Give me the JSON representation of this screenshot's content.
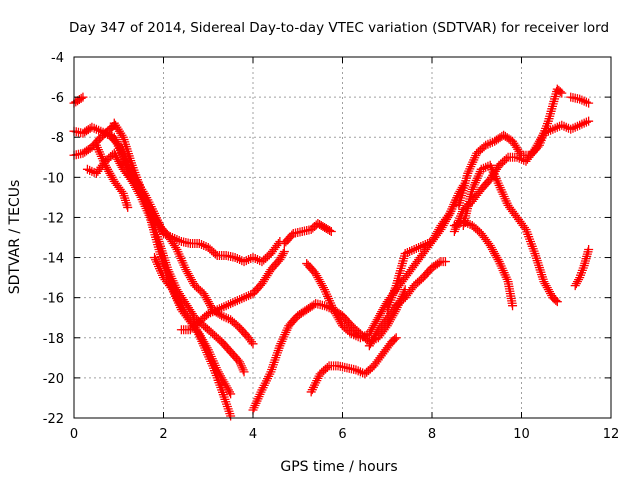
{
  "chart_data": {
    "type": "scatter",
    "title": "Day 347 of 2014, Sidereal Day-to-day VTEC variation (SDTVAR) for receiver lord",
    "xlabel": "GPS time / hours",
    "ylabel": "SDTVAR / TECUs",
    "xlim": [
      0,
      12
    ],
    "ylim": [
      -22,
      -4
    ],
    "xticks": [
      0,
      2,
      4,
      6,
      8,
      10,
      12
    ],
    "yticks": [
      -22,
      -20,
      -18,
      -16,
      -14,
      -12,
      -10,
      -8,
      -6,
      -4
    ],
    "grid": true,
    "marker": "plus",
    "marker_color": "#ff0000",
    "series": [
      {
        "values": [
          [
            0.0,
            -6.3
          ],
          [
            0.2,
            -6.0
          ]
        ]
      },
      {
        "values": [
          [
            0.0,
            -7.7
          ],
          [
            0.2,
            -7.8
          ],
          [
            0.4,
            -7.5
          ],
          [
            0.6,
            -7.7
          ],
          [
            0.8,
            -7.9
          ],
          [
            1.0,
            -8.4
          ],
          [
            1.2,
            -9.4
          ],
          [
            1.4,
            -10.2
          ],
          [
            1.6,
            -10.9
          ],
          [
            1.8,
            -11.8
          ],
          [
            2.0,
            -12.8
          ],
          [
            2.2,
            -13.0
          ],
          [
            2.4,
            -13.2
          ],
          [
            2.6,
            -13.3
          ],
          [
            2.8,
            -13.3
          ],
          [
            3.0,
            -13.5
          ],
          [
            3.2,
            -13.9
          ],
          [
            3.4,
            -13.9
          ],
          [
            3.6,
            -14.0
          ],
          [
            3.8,
            -14.2
          ],
          [
            4.0,
            -14.0
          ],
          [
            4.2,
            -14.2
          ],
          [
            4.4,
            -13.8
          ],
          [
            4.6,
            -13.2
          ]
        ]
      },
      {
        "values": [
          [
            0.0,
            -8.9
          ],
          [
            0.2,
            -8.8
          ],
          [
            0.4,
            -8.5
          ],
          [
            0.6,
            -8.0
          ],
          [
            0.8,
            -7.6
          ],
          [
            0.9,
            -7.4
          ]
        ]
      },
      {
        "values": [
          [
            0.9,
            -7.3
          ],
          [
            1.1,
            -8.0
          ],
          [
            1.3,
            -9.4
          ],
          [
            1.5,
            -10.6
          ],
          [
            1.7,
            -11.8
          ],
          [
            1.9,
            -13.2
          ],
          [
            2.1,
            -14.6
          ],
          [
            2.3,
            -15.6
          ],
          [
            2.5,
            -16.3
          ],
          [
            2.7,
            -17.0
          ],
          [
            2.9,
            -17.4
          ],
          [
            3.1,
            -17.8
          ],
          [
            3.3,
            -18.2
          ],
          [
            3.5,
            -18.7
          ],
          [
            3.7,
            -19.2
          ],
          [
            3.8,
            -19.7
          ]
        ]
      },
      {
        "values": [
          [
            0.7,
            -7.8
          ],
          [
            0.9,
            -8.0
          ],
          [
            1.1,
            -9.0
          ],
          [
            1.3,
            -10.2
          ],
          [
            1.5,
            -11.0
          ],
          [
            1.7,
            -12.0
          ],
          [
            1.9,
            -13.6
          ],
          [
            2.1,
            -15.0
          ],
          [
            2.3,
            -16.0
          ],
          [
            2.5,
            -16.8
          ],
          [
            2.7,
            -17.4
          ],
          [
            2.9,
            -18.4
          ],
          [
            3.1,
            -19.4
          ],
          [
            3.3,
            -20.6
          ],
          [
            3.5,
            -21.9
          ]
        ]
      },
      {
        "values": [
          [
            0.3,
            -9.6
          ],
          [
            0.5,
            -9.8
          ],
          [
            0.7,
            -9.2
          ],
          [
            0.9,
            -8.8
          ],
          [
            1.1,
            -9.6
          ],
          [
            1.3,
            -10.2
          ],
          [
            1.5,
            -10.8
          ],
          [
            1.7,
            -11.6
          ],
          [
            1.9,
            -12.4
          ],
          [
            2.1,
            -12.9
          ],
          [
            2.3,
            -13.6
          ],
          [
            2.5,
            -14.6
          ],
          [
            2.7,
            -15.4
          ],
          [
            2.9,
            -15.8
          ],
          [
            3.1,
            -16.6
          ],
          [
            3.3,
            -16.9
          ],
          [
            3.5,
            -17.1
          ],
          [
            3.7,
            -17.5
          ],
          [
            3.9,
            -18.0
          ],
          [
            4.0,
            -18.3
          ]
        ]
      },
      {
        "values": [
          [
            0.5,
            -8.4
          ],
          [
            0.7,
            -9.4
          ],
          [
            0.9,
            -10.2
          ],
          [
            1.1,
            -10.8
          ],
          [
            1.2,
            -11.5
          ]
        ]
      },
      {
        "values": [
          [
            1.8,
            -14.0
          ],
          [
            2.0,
            -15.0
          ],
          [
            2.2,
            -15.6
          ],
          [
            2.4,
            -16.6
          ],
          [
            2.6,
            -17.2
          ],
          [
            2.8,
            -17.8
          ],
          [
            3.0,
            -18.6
          ],
          [
            3.2,
            -19.6
          ],
          [
            3.4,
            -20.4
          ],
          [
            3.5,
            -20.8
          ]
        ]
      },
      {
        "values": [
          [
            2.4,
            -17.6
          ],
          [
            2.6,
            -17.6
          ],
          [
            2.8,
            -17.2
          ],
          [
            3.0,
            -16.8
          ],
          [
            3.2,
            -16.6
          ],
          [
            3.4,
            -16.4
          ],
          [
            3.6,
            -16.2
          ],
          [
            3.8,
            -16.0
          ],
          [
            4.0,
            -15.8
          ],
          [
            4.2,
            -15.3
          ],
          [
            4.4,
            -14.6
          ],
          [
            4.6,
            -14.1
          ],
          [
            4.7,
            -13.7
          ]
        ]
      },
      {
        "values": [
          [
            4.0,
            -21.6
          ],
          [
            4.2,
            -20.6
          ],
          [
            4.4,
            -19.7
          ],
          [
            4.6,
            -18.4
          ],
          [
            4.8,
            -17.4
          ],
          [
            5.0,
            -16.9
          ],
          [
            5.2,
            -16.6
          ],
          [
            5.4,
            -16.3
          ],
          [
            5.6,
            -16.4
          ],
          [
            5.8,
            -16.6
          ],
          [
            6.0,
            -16.9
          ],
          [
            6.2,
            -17.4
          ],
          [
            6.4,
            -17.8
          ],
          [
            6.6,
            -18.2
          ],
          [
            6.8,
            -18.0
          ],
          [
            7.0,
            -17.4
          ],
          [
            7.2,
            -16.6
          ],
          [
            7.4,
            -15.6
          ]
        ]
      },
      {
        "values": [
          [
            4.7,
            -13.3
          ],
          [
            4.9,
            -12.8
          ],
          [
            5.1,
            -12.7
          ],
          [
            5.3,
            -12.6
          ],
          [
            5.45,
            -12.3
          ],
          [
            5.6,
            -12.5
          ],
          [
            5.75,
            -12.7
          ]
        ]
      },
      {
        "values": [
          [
            5.3,
            -20.7
          ],
          [
            5.5,
            -19.8
          ],
          [
            5.7,
            -19.4
          ],
          [
            5.9,
            -19.4
          ],
          [
            6.1,
            -19.5
          ],
          [
            6.3,
            -19.6
          ],
          [
            6.5,
            -19.8
          ],
          [
            6.7,
            -19.4
          ],
          [
            6.9,
            -18.8
          ],
          [
            7.1,
            -18.2
          ],
          [
            7.2,
            -18.0
          ]
        ]
      },
      {
        "values": [
          [
            5.2,
            -14.3
          ],
          [
            5.4,
            -14.8
          ],
          [
            5.6,
            -15.6
          ],
          [
            5.8,
            -16.6
          ],
          [
            6.0,
            -17.4
          ],
          [
            6.2,
            -17.8
          ],
          [
            6.4,
            -18.0
          ],
          [
            6.6,
            -17.8
          ],
          [
            6.8,
            -17.0
          ],
          [
            7.0,
            -16.2
          ],
          [
            7.2,
            -15.6
          ],
          [
            7.4,
            -15.0
          ],
          [
            7.6,
            -14.4
          ],
          [
            7.8,
            -13.8
          ],
          [
            8.0,
            -13.2
          ],
          [
            8.2,
            -12.6
          ],
          [
            8.4,
            -11.8
          ],
          [
            8.6,
            -10.8
          ],
          [
            8.7,
            -10.4
          ]
        ]
      },
      {
        "values": [
          [
            6.6,
            -18.4
          ],
          [
            6.8,
            -17.6
          ],
          [
            7.0,
            -17.0
          ],
          [
            7.2,
            -16.4
          ],
          [
            7.4,
            -16.0
          ],
          [
            7.6,
            -15.4
          ],
          [
            7.8,
            -15.0
          ],
          [
            8.0,
            -14.5
          ],
          [
            8.2,
            -14.2
          ],
          [
            8.3,
            -14.2
          ]
        ]
      },
      {
        "values": [
          [
            7.0,
            -16.6
          ],
          [
            7.2,
            -15.4
          ],
          [
            7.4,
            -13.8
          ],
          [
            7.6,
            -13.6
          ],
          [
            7.8,
            -13.4
          ],
          [
            8.0,
            -13.2
          ],
          [
            8.2,
            -12.4
          ],
          [
            8.4,
            -11.8
          ],
          [
            8.6,
            -10.8
          ]
        ]
      },
      {
        "values": [
          [
            8.5,
            -12.4
          ],
          [
            8.7,
            -12.2
          ],
          [
            8.9,
            -12.4
          ],
          [
            9.1,
            -12.8
          ],
          [
            9.3,
            -13.4
          ],
          [
            9.5,
            -14.2
          ],
          [
            9.7,
            -15.2
          ],
          [
            9.8,
            -16.4
          ]
        ]
      },
      {
        "values": [
          [
            8.5,
            -12.7
          ],
          [
            8.7,
            -11.6
          ],
          [
            8.9,
            -11.2
          ],
          [
            9.1,
            -10.6
          ],
          [
            9.3,
            -10.1
          ],
          [
            9.5,
            -9.4
          ],
          [
            9.7,
            -9.0
          ],
          [
            9.9,
            -9.0
          ],
          [
            10.1,
            -9.2
          ],
          [
            10.3,
            -8.6
          ],
          [
            10.5,
            -7.8
          ],
          [
            10.7,
            -7.6
          ],
          [
            10.9,
            -7.4
          ],
          [
            11.1,
            -7.6
          ],
          [
            11.3,
            -7.4
          ],
          [
            11.5,
            -7.2
          ]
        ]
      },
      {
        "values": [
          [
            8.6,
            -11.4
          ],
          [
            8.8,
            -9.8
          ],
          [
            9.0,
            -8.8
          ],
          [
            9.2,
            -8.4
          ],
          [
            9.4,
            -8.2
          ],
          [
            9.6,
            -7.9
          ],
          [
            9.8,
            -8.2
          ],
          [
            10.0,
            -8.9
          ],
          [
            10.2,
            -8.9
          ],
          [
            10.4,
            -8.4
          ],
          [
            10.6,
            -7.2
          ],
          [
            10.8,
            -5.6
          ],
          [
            10.9,
            -5.8
          ]
        ]
      },
      {
        "values": [
          [
            8.7,
            -12.4
          ],
          [
            8.9,
            -10.6
          ],
          [
            9.1,
            -9.6
          ],
          [
            9.3,
            -9.4
          ],
          [
            9.5,
            -10.4
          ],
          [
            9.7,
            -11.4
          ],
          [
            9.9,
            -12.0
          ],
          [
            10.1,
            -12.6
          ],
          [
            10.3,
            -13.8
          ],
          [
            10.5,
            -15.2
          ],
          [
            10.7,
            -16.0
          ],
          [
            10.8,
            -16.2
          ]
        ]
      },
      {
        "values": [
          [
            11.1,
            -6.0
          ],
          [
            11.3,
            -6.1
          ],
          [
            11.5,
            -6.3
          ]
        ]
      },
      {
        "values": [
          [
            11.2,
            -15.4
          ],
          [
            11.3,
            -15.0
          ],
          [
            11.4,
            -14.4
          ],
          [
            11.5,
            -13.6
          ]
        ]
      }
    ]
  }
}
